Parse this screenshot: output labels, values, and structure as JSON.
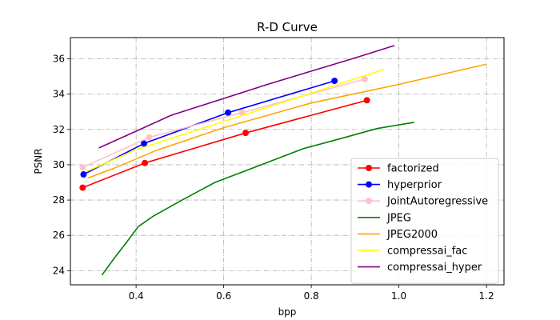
{
  "chart_data": {
    "type": "line",
    "title": "R-D Curve",
    "xlabel": "bpp",
    "ylabel": "PSNR",
    "xlim": [
      0.25,
      1.24
    ],
    "ylim": [
      23.2,
      37.2
    ],
    "xticks": [
      0.4,
      0.6,
      0.8,
      1.0,
      1.2
    ],
    "xtick_labels": [
      "0.4",
      "0.6",
      "0.8",
      "1.0",
      "1.2"
    ],
    "yticks": [
      24,
      26,
      28,
      30,
      32,
      34,
      36
    ],
    "ytick_labels": [
      "24",
      "26",
      "28",
      "30",
      "32",
      "34",
      "36"
    ],
    "grid": true,
    "legend_position": "lower-right",
    "series": [
      {
        "name": "factorized",
        "color": "#ff0000",
        "marker": "circle",
        "x": [
          0.278,
          0.42,
          0.65,
          0.927
        ],
        "y": [
          28.7,
          30.1,
          31.8,
          33.65
        ]
      },
      {
        "name": "hyperprior",
        "color": "#0000ff",
        "marker": "circle",
        "x": [
          0.28,
          0.418,
          0.61,
          0.853
        ],
        "y": [
          29.45,
          31.2,
          32.95,
          34.75
        ]
      },
      {
        "name": "JointAutoregressive",
        "color": "#ffc0cb",
        "marker": "circle",
        "x": [
          0.278,
          0.43,
          0.642,
          0.922
        ],
        "y": [
          29.85,
          31.55,
          32.95,
          34.85
        ]
      },
      {
        "name": "JPEG",
        "color": "#008000",
        "marker": "none",
        "x": [
          0.322,
          0.35,
          0.378,
          0.405,
          0.44,
          0.505,
          0.58,
          0.66,
          0.78,
          0.87,
          0.95,
          1.035
        ],
        "y": [
          23.75,
          24.7,
          25.6,
          26.5,
          27.1,
          28.0,
          29.0,
          29.75,
          30.9,
          31.5,
          32.05,
          32.4
        ]
      },
      {
        "name": "JPEG2000",
        "color": "#ffa500",
        "marker": "none",
        "x": [
          0.29,
          0.35,
          0.45,
          0.6,
          0.8,
          1.0,
          1.2
        ],
        "y": [
          29.25,
          29.8,
          30.85,
          32.1,
          33.5,
          34.55,
          35.7
        ]
      },
      {
        "name": "compressai_fac",
        "color": "#ffff00",
        "marker": "none",
        "x": [
          0.285,
          0.4,
          0.6,
          0.8,
          0.965
        ],
        "y": [
          29.6,
          30.85,
          32.45,
          34.05,
          35.4
        ]
      },
      {
        "name": "compressai_hyper",
        "color": "#800080",
        "marker": "none",
        "x": [
          0.315,
          0.4,
          0.48,
          0.6,
          0.7,
          0.8,
          0.9,
          0.99
        ],
        "y": [
          30.95,
          31.9,
          32.8,
          33.75,
          34.55,
          35.3,
          36.05,
          36.75
        ]
      }
    ]
  }
}
